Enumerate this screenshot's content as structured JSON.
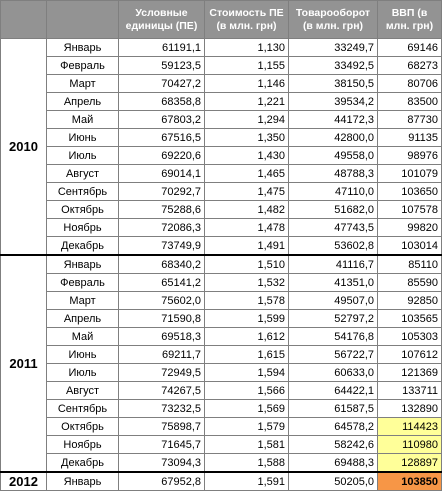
{
  "headers": [
    "",
    "",
    "Условные единицы (ПЕ)",
    "Стоимость ПЕ (в млн. грн)",
    "Товарооборот (в млн. грн)",
    "ВВП (в млн. грн)"
  ],
  "years": [
    {
      "year": "2010",
      "rows": [
        {
          "month": "Январь",
          "ue": "61191,1",
          "cost": "1,130",
          "turnover": "33249,7",
          "gdp": "69146",
          "hl": ""
        },
        {
          "month": "Февраль",
          "ue": "59123,5",
          "cost": "1,155",
          "turnover": "33492,5",
          "gdp": "68273",
          "hl": ""
        },
        {
          "month": "Март",
          "ue": "70427,2",
          "cost": "1,146",
          "turnover": "38150,5",
          "gdp": "80706",
          "hl": ""
        },
        {
          "month": "Апрель",
          "ue": "68358,8",
          "cost": "1,221",
          "turnover": "39534,2",
          "gdp": "83500",
          "hl": ""
        },
        {
          "month": "Май",
          "ue": "67803,2",
          "cost": "1,294",
          "turnover": "44172,3",
          "gdp": "87730",
          "hl": ""
        },
        {
          "month": "Июнь",
          "ue": "67516,5",
          "cost": "1,350",
          "turnover": "42800,0",
          "gdp": "91135",
          "hl": ""
        },
        {
          "month": "Июль",
          "ue": "69220,6",
          "cost": "1,430",
          "turnover": "49558,0",
          "gdp": "98976",
          "hl": ""
        },
        {
          "month": "Август",
          "ue": "69014,1",
          "cost": "1,465",
          "turnover": "48788,3",
          "gdp": "101079",
          "hl": ""
        },
        {
          "month": "Сентябрь",
          "ue": "70292,7",
          "cost": "1,475",
          "turnover": "47110,0",
          "gdp": "103650",
          "hl": ""
        },
        {
          "month": "Октябрь",
          "ue": "75288,6",
          "cost": "1,482",
          "turnover": "51682,0",
          "gdp": "107578",
          "hl": ""
        },
        {
          "month": "Ноябрь",
          "ue": "72086,3",
          "cost": "1,478",
          "turnover": "47743,5",
          "gdp": "99820",
          "hl": ""
        },
        {
          "month": "Декабрь",
          "ue": "73749,9",
          "cost": "1,491",
          "turnover": "53602,8",
          "gdp": "103014",
          "hl": ""
        }
      ]
    },
    {
      "year": "2011",
      "rows": [
        {
          "month": "Январь",
          "ue": "68340,2",
          "cost": "1,510",
          "turnover": "41116,7",
          "gdp": "85110",
          "hl": ""
        },
        {
          "month": "Февраль",
          "ue": "65141,2",
          "cost": "1,532",
          "turnover": "41351,0",
          "gdp": "85590",
          "hl": ""
        },
        {
          "month": "Март",
          "ue": "75602,0",
          "cost": "1,578",
          "turnover": "49507,0",
          "gdp": "92850",
          "hl": ""
        },
        {
          "month": "Апрель",
          "ue": "71590,8",
          "cost": "1,599",
          "turnover": "52797,2",
          "gdp": "103565",
          "hl": ""
        },
        {
          "month": "Май",
          "ue": "69518,3",
          "cost": "1,612",
          "turnover": "54176,8",
          "gdp": "105303",
          "hl": ""
        },
        {
          "month": "Июнь",
          "ue": "69211,7",
          "cost": "1,615",
          "turnover": "56722,7",
          "gdp": "107612",
          "hl": ""
        },
        {
          "month": "Июль",
          "ue": "72949,5",
          "cost": "1,594",
          "turnover": "60633,0",
          "gdp": "121369",
          "hl": ""
        },
        {
          "month": "Август",
          "ue": "74267,5",
          "cost": "1,566",
          "turnover": "64422,1",
          "gdp": "133711",
          "hl": ""
        },
        {
          "month": "Сентябрь",
          "ue": "73232,5",
          "cost": "1,569",
          "turnover": "61587,5",
          "gdp": "132890",
          "hl": ""
        },
        {
          "month": "Октябрь",
          "ue": "75898,7",
          "cost": "1,579",
          "turnover": "64578,2",
          "gdp": "114423",
          "hl": "hl"
        },
        {
          "month": "Ноябрь",
          "ue": "71645,7",
          "cost": "1,581",
          "turnover": "58242,6",
          "gdp": "110980",
          "hl": "hl"
        },
        {
          "month": "Декабрь",
          "ue": "73094,3",
          "cost": "1,588",
          "turnover": "69488,3",
          "gdp": "128897",
          "hl": "hl"
        }
      ]
    },
    {
      "year": "2012",
      "rows": [
        {
          "month": "Январь",
          "ue": "67952,8",
          "cost": "1,591",
          "turnover": "50205,0",
          "gdp": "103850",
          "hl": "hl-strong"
        }
      ]
    }
  ],
  "colors": {
    "header_bg": "#939393",
    "highlight": "#ffff99",
    "highlight_strong": "#f79646"
  }
}
